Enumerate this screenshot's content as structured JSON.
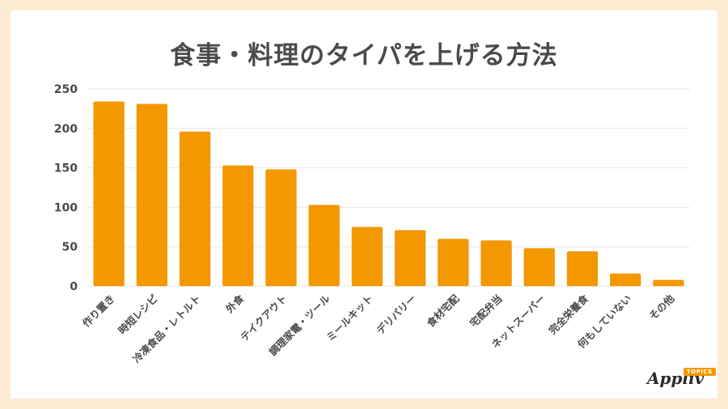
{
  "chart_data": {
    "type": "bar",
    "title": "食事・料理のタイパを上げる方法",
    "categories": [
      "作り置き",
      "時短レシピ",
      "冷凍食品・レトルト",
      "外食",
      "テイクアウト",
      "調理家電・ツール",
      "ミールキット",
      "デリバリー",
      "食材宅配",
      "宅配弁当",
      "ネットスーパー",
      "完全栄養食",
      "何もしていない",
      "その他"
    ],
    "values": [
      234,
      231,
      196,
      153,
      148,
      103,
      75,
      71,
      60,
      58,
      48,
      44,
      16,
      8
    ],
    "ylim": [
      0,
      250
    ],
    "yticks": [
      0,
      50,
      100,
      150,
      200,
      250
    ],
    "grid": true,
    "legend": "none",
    "bar_color": "#f39800",
    "grid_color": "#e6e6e6",
    "text_color": "#4a4a4a"
  },
  "branding": {
    "logo_text": "Appliv",
    "logo_badge": "TOPICS"
  }
}
